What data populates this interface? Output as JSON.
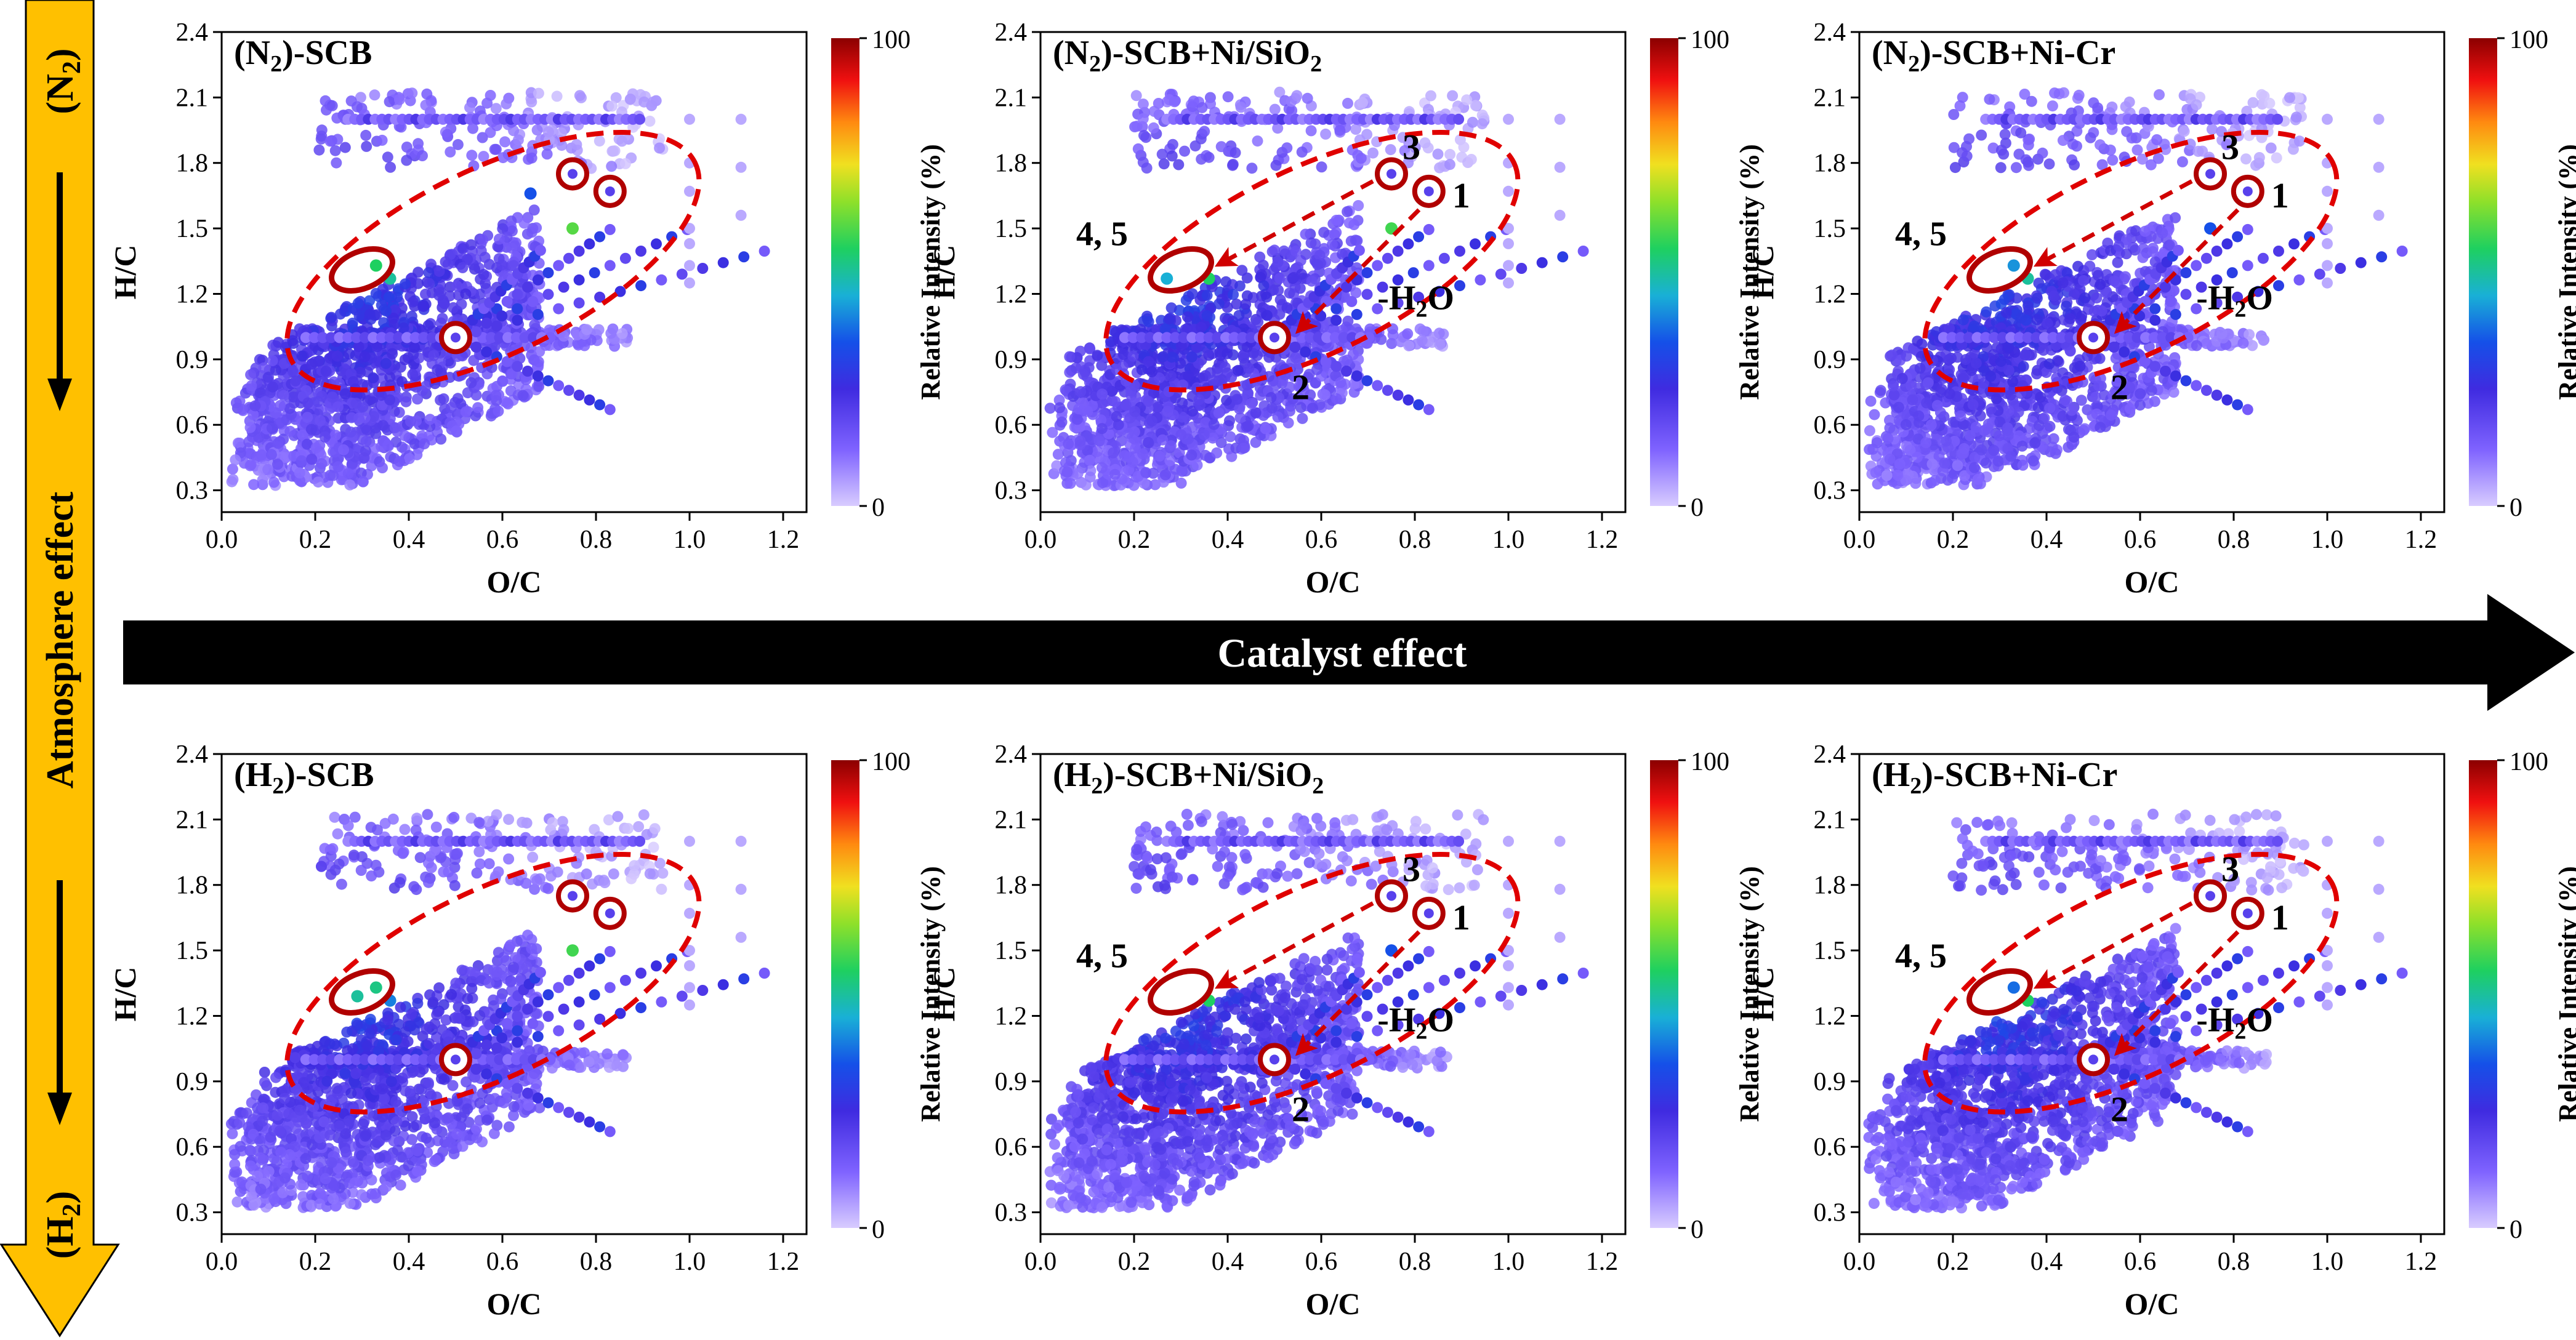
{
  "figure": {
    "left_arrow": {
      "label": "Atmosphere effect",
      "top_sub": "2",
      "top_pre": "(N",
      "top_post": ")",
      "bottom_sub": "2",
      "bottom_pre": "(H",
      "bottom_post": ")",
      "fill_color": "#FFC000"
    },
    "middle_arrow": {
      "label": "Catalyst effect",
      "fill_color": "#000000"
    },
    "colorbar": {
      "label": "Relative Intensity (%)",
      "min_label": "0",
      "max_label": "100"
    },
    "annotation_water": {
      "pre": "-H",
      "sub": "2",
      "post": "O"
    },
    "highlight_color": "#E00000"
  },
  "chart_data": [
    {
      "type": "scatter",
      "id": "n2-scb",
      "title_parts": {
        "open": "(N",
        "sub": "2",
        "rest": ")-SCB"
      },
      "xlabel": "O/C",
      "ylabel": "H/C",
      "xlim": [
        0,
        1.25
      ],
      "ylim": [
        0.2,
        2.4
      ],
      "xticks": [
        "0.0",
        "0.2",
        "0.4",
        "0.6",
        "0.8",
        "1.0",
        "1.2"
      ],
      "yticks": [
        "0.3",
        "0.6",
        "0.9",
        "1.2",
        "1.5",
        "1.8",
        "2.1",
        "2.4"
      ],
      "show_arrows": false,
      "markers": [
        {
          "label": "",
          "x": 0.83,
          "y": 1.67
        },
        {
          "label": "",
          "x": 0.5,
          "y": 1.0
        },
        {
          "label": "",
          "x": 0.75,
          "y": 1.75
        }
      ],
      "cluster_label": "",
      "cluster": {
        "x": 0.3,
        "y": 1.31
      },
      "highlights": [
        {
          "x": 0.75,
          "y": 1.5,
          "intensity": 60
        },
        {
          "x": 0.33,
          "y": 1.33,
          "intensity": 55
        },
        {
          "x": 0.36,
          "y": 1.27,
          "intensity": 50
        },
        {
          "x": 0.66,
          "y": 1.66,
          "intensity": 35
        }
      ],
      "noise_seed": 11
    },
    {
      "type": "scatter",
      "id": "n2-scb-ni-sio2",
      "title_parts": {
        "open": "(N",
        "sub": "2",
        "rest": ")-SCB+Ni/SiO",
        "sub2": "2"
      },
      "xlabel": "O/C",
      "ylabel": "H/C",
      "xlim": [
        0,
        1.25
      ],
      "ylim": [
        0.2,
        2.4
      ],
      "xticks": [
        "0.0",
        "0.2",
        "0.4",
        "0.6",
        "0.8",
        "1.0",
        "1.2"
      ],
      "yticks": [
        "0.3",
        "0.6",
        "0.9",
        "1.2",
        "1.5",
        "1.8",
        "2.1",
        "2.4"
      ],
      "show_arrows": true,
      "markers": [
        {
          "label": "1",
          "x": 0.83,
          "y": 1.67
        },
        {
          "label": "2",
          "x": 0.5,
          "y": 1.0
        },
        {
          "label": "3",
          "x": 0.75,
          "y": 1.75
        }
      ],
      "cluster_label": "4, 5",
      "cluster": {
        "x": 0.3,
        "y": 1.31
      },
      "highlights": [
        {
          "x": 0.75,
          "y": 1.5,
          "intensity": 58
        },
        {
          "x": 0.36,
          "y": 1.27,
          "intensity": 55
        },
        {
          "x": 0.27,
          "y": 1.27,
          "intensity": 45
        }
      ],
      "noise_seed": 23
    },
    {
      "type": "scatter",
      "id": "n2-scb-ni-cr",
      "title_parts": {
        "open": "(N",
        "sub": "2",
        "rest": ")-SCB+Ni-Cr"
      },
      "xlabel": "O/C",
      "ylabel": "H/C",
      "xlim": [
        0,
        1.25
      ],
      "ylim": [
        0.2,
        2.4
      ],
      "xticks": [
        "0.0",
        "0.2",
        "0.4",
        "0.6",
        "0.8",
        "1.0",
        "1.2"
      ],
      "yticks": [
        "0.3",
        "0.6",
        "0.9",
        "1.2",
        "1.5",
        "1.8",
        "2.1",
        "2.4"
      ],
      "show_arrows": true,
      "markers": [
        {
          "label": "1",
          "x": 0.83,
          "y": 1.67
        },
        {
          "label": "2",
          "x": 0.5,
          "y": 1.0
        },
        {
          "label": "3",
          "x": 0.75,
          "y": 1.75
        }
      ],
      "cluster_label": "4, 5",
      "cluster": {
        "x": 0.3,
        "y": 1.31
      },
      "highlights": [
        {
          "x": 0.36,
          "y": 1.27,
          "intensity": 50
        },
        {
          "x": 0.33,
          "y": 1.33,
          "intensity": 42
        },
        {
          "x": 0.75,
          "y": 1.5,
          "intensity": 35
        }
      ],
      "noise_seed": 37
    },
    {
      "type": "scatter",
      "id": "h2-scb",
      "title_parts": {
        "open": "(H",
        "sub": "2",
        "rest": ")-SCB"
      },
      "xlabel": "O/C",
      "ylabel": "H/C",
      "xlim": [
        0,
        1.25
      ],
      "ylim": [
        0.2,
        2.4
      ],
      "xticks": [
        "0.0",
        "0.2",
        "0.4",
        "0.6",
        "0.8",
        "1.0",
        "1.2"
      ],
      "yticks": [
        "0.3",
        "0.6",
        "0.9",
        "1.2",
        "1.5",
        "1.8",
        "2.1",
        "2.4"
      ],
      "show_arrows": false,
      "markers": [
        {
          "label": "",
          "x": 0.83,
          "y": 1.67
        },
        {
          "label": "",
          "x": 0.5,
          "y": 1.0
        },
        {
          "label": "",
          "x": 0.75,
          "y": 1.75
        }
      ],
      "cluster_label": "",
      "cluster": {
        "x": 0.3,
        "y": 1.31
      },
      "highlights": [
        {
          "x": 0.75,
          "y": 1.5,
          "intensity": 58
        },
        {
          "x": 0.33,
          "y": 1.33,
          "intensity": 52
        },
        {
          "x": 0.29,
          "y": 1.29,
          "intensity": 50
        },
        {
          "x": 0.36,
          "y": 1.27,
          "intensity": 40
        }
      ],
      "noise_seed": 53
    },
    {
      "type": "scatter",
      "id": "h2-scb-ni-sio2",
      "title_parts": {
        "open": "(H",
        "sub": "2",
        "rest": ")-SCB+Ni/SiO",
        "sub2": "2"
      },
      "xlabel": "O/C",
      "ylabel": "H/C",
      "xlim": [
        0,
        1.25
      ],
      "ylim": [
        0.2,
        2.4
      ],
      "xticks": [
        "0.0",
        "0.2",
        "0.4",
        "0.6",
        "0.8",
        "1.0",
        "1.2"
      ],
      "yticks": [
        "0.3",
        "0.6",
        "0.9",
        "1.2",
        "1.5",
        "1.8",
        "2.1",
        "2.4"
      ],
      "show_arrows": true,
      "markers": [
        {
          "label": "1",
          "x": 0.83,
          "y": 1.67
        },
        {
          "label": "2",
          "x": 0.5,
          "y": 1.0
        },
        {
          "label": "3",
          "x": 0.75,
          "y": 1.75
        }
      ],
      "cluster_label": "4, 5",
      "cluster": {
        "x": 0.3,
        "y": 1.31
      },
      "highlights": [
        {
          "x": 0.83,
          "y": 1.67,
          "intensity": 60
        },
        {
          "x": 0.36,
          "y": 1.27,
          "intensity": 55
        },
        {
          "x": 0.75,
          "y": 1.5,
          "intensity": 35
        }
      ],
      "noise_seed": 71
    },
    {
      "type": "scatter",
      "id": "h2-scb-ni-cr",
      "title_parts": {
        "open": "(H",
        "sub": "2",
        "rest": ")-SCB+Ni-Cr"
      },
      "xlabel": "O/C",
      "ylabel": "H/C",
      "xlim": [
        0,
        1.25
      ],
      "ylim": [
        0.2,
        2.4
      ],
      "xticks": [
        "0.0",
        "0.2",
        "0.4",
        "0.6",
        "0.8",
        "1.0",
        "1.2"
      ],
      "yticks": [
        "0.3",
        "0.6",
        "0.9",
        "1.2",
        "1.5",
        "1.8",
        "2.1",
        "2.4"
      ],
      "show_arrows": true,
      "markers": [
        {
          "label": "1",
          "x": 0.83,
          "y": 1.67
        },
        {
          "label": "2",
          "x": 0.5,
          "y": 1.0
        },
        {
          "label": "3",
          "x": 0.75,
          "y": 1.75
        }
      ],
      "cluster_label": "4, 5",
      "cluster": {
        "x": 0.3,
        "y": 1.31
      },
      "highlights": [
        {
          "x": 0.5,
          "y": 1.0,
          "intensity": 60
        },
        {
          "x": 0.36,
          "y": 1.27,
          "intensity": 55
        },
        {
          "x": 0.33,
          "y": 1.33,
          "intensity": 38
        }
      ],
      "noise_seed": 89
    }
  ]
}
